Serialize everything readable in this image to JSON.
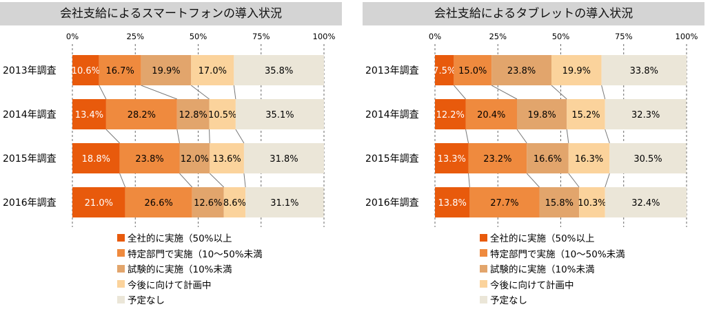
{
  "colors": [
    "#e85a0c",
    "#ef8a3e",
    "#e2a56c",
    "#fbd39c",
    "#ebe6d8"
  ],
  "legend": [
    "全社的に実施（50%以上",
    "特定部門で実施（10～50%未満",
    "試験的に実施（10%未満",
    "今後に向けて計画中",
    "予定なし"
  ],
  "chart_data": [
    {
      "type": "bar",
      "orientation": "horizontal",
      "stacked": true,
      "title": "会社支給によるスマートフォンの導入状況",
      "categories": [
        "2013年調査",
        "2014年調査",
        "2015年調査",
        "2016年調査"
      ],
      "x_ticks": [
        "0%",
        "25%",
        "50%",
        "75%",
        "100%"
      ],
      "xlim": [
        0,
        100
      ],
      "series": [
        {
          "name": "全社的に実施（50%以上",
          "values": [
            10.6,
            13.4,
            18.8,
            21.0
          ],
          "labels": [
            "10.6%",
            "13.4%",
            "18.8%",
            "21.0%"
          ]
        },
        {
          "name": "特定部門で実施（10～50%未満",
          "values": [
            16.7,
            28.2,
            23.8,
            26.6
          ],
          "labels": [
            "16.7%",
            "28.2%",
            "23.8%",
            "26.6%"
          ]
        },
        {
          "name": "試験的に実施（10%未満",
          "values": [
            19.9,
            12.8,
            12.0,
            12.6
          ],
          "labels": [
            "19.9%",
            "12.8%",
            "12.0%",
            "12.6%"
          ]
        },
        {
          "name": "今後に向けて計画中",
          "values": [
            17.0,
            10.5,
            13.6,
            8.6
          ],
          "labels": [
            "17.0%",
            "10.5%",
            "13.6%",
            "8.6%"
          ]
        },
        {
          "name": "予定なし",
          "values": [
            35.8,
            35.1,
            31.8,
            31.1
          ],
          "labels": [
            "35.8%",
            "35.1%",
            "31.8%",
            "31.1%"
          ]
        }
      ]
    },
    {
      "type": "bar",
      "orientation": "horizontal",
      "stacked": true,
      "title": "会社支給によるタブレットの導入状況",
      "categories": [
        "2013年調査",
        "2014年調査",
        "2015年調査",
        "2016年調査"
      ],
      "x_ticks": [
        "0%",
        "25%",
        "50%",
        "75%",
        "100%"
      ],
      "xlim": [
        0,
        100
      ],
      "series": [
        {
          "name": "全社的に実施（50%以上",
          "values": [
            7.5,
            12.2,
            13.3,
            13.8
          ],
          "labels": [
            "7.5%",
            "12.2%",
            "13.3%",
            "13.8%"
          ]
        },
        {
          "name": "特定部門で実施（10～50%未満",
          "values": [
            15.0,
            20.4,
            23.2,
            27.7
          ],
          "labels": [
            "15.0%",
            "20.4%",
            "23.2%",
            "27.7%"
          ]
        },
        {
          "name": "試験的に実施（10%未満",
          "values": [
            23.8,
            19.8,
            16.6,
            15.8
          ],
          "labels": [
            "23.8%",
            "19.8%",
            "16.6%",
            "15.8%"
          ]
        },
        {
          "name": "今後に向けて計画中",
          "values": [
            19.9,
            15.2,
            16.3,
            10.3
          ],
          "labels": [
            "19.9%",
            "15.2%",
            "16.3%",
            "10.3%"
          ]
        },
        {
          "name": "予定なし",
          "values": [
            33.8,
            32.3,
            30.5,
            32.4
          ],
          "labels": [
            "33.8%",
            "32.3%",
            "30.5%",
            "32.4%"
          ]
        }
      ]
    }
  ]
}
